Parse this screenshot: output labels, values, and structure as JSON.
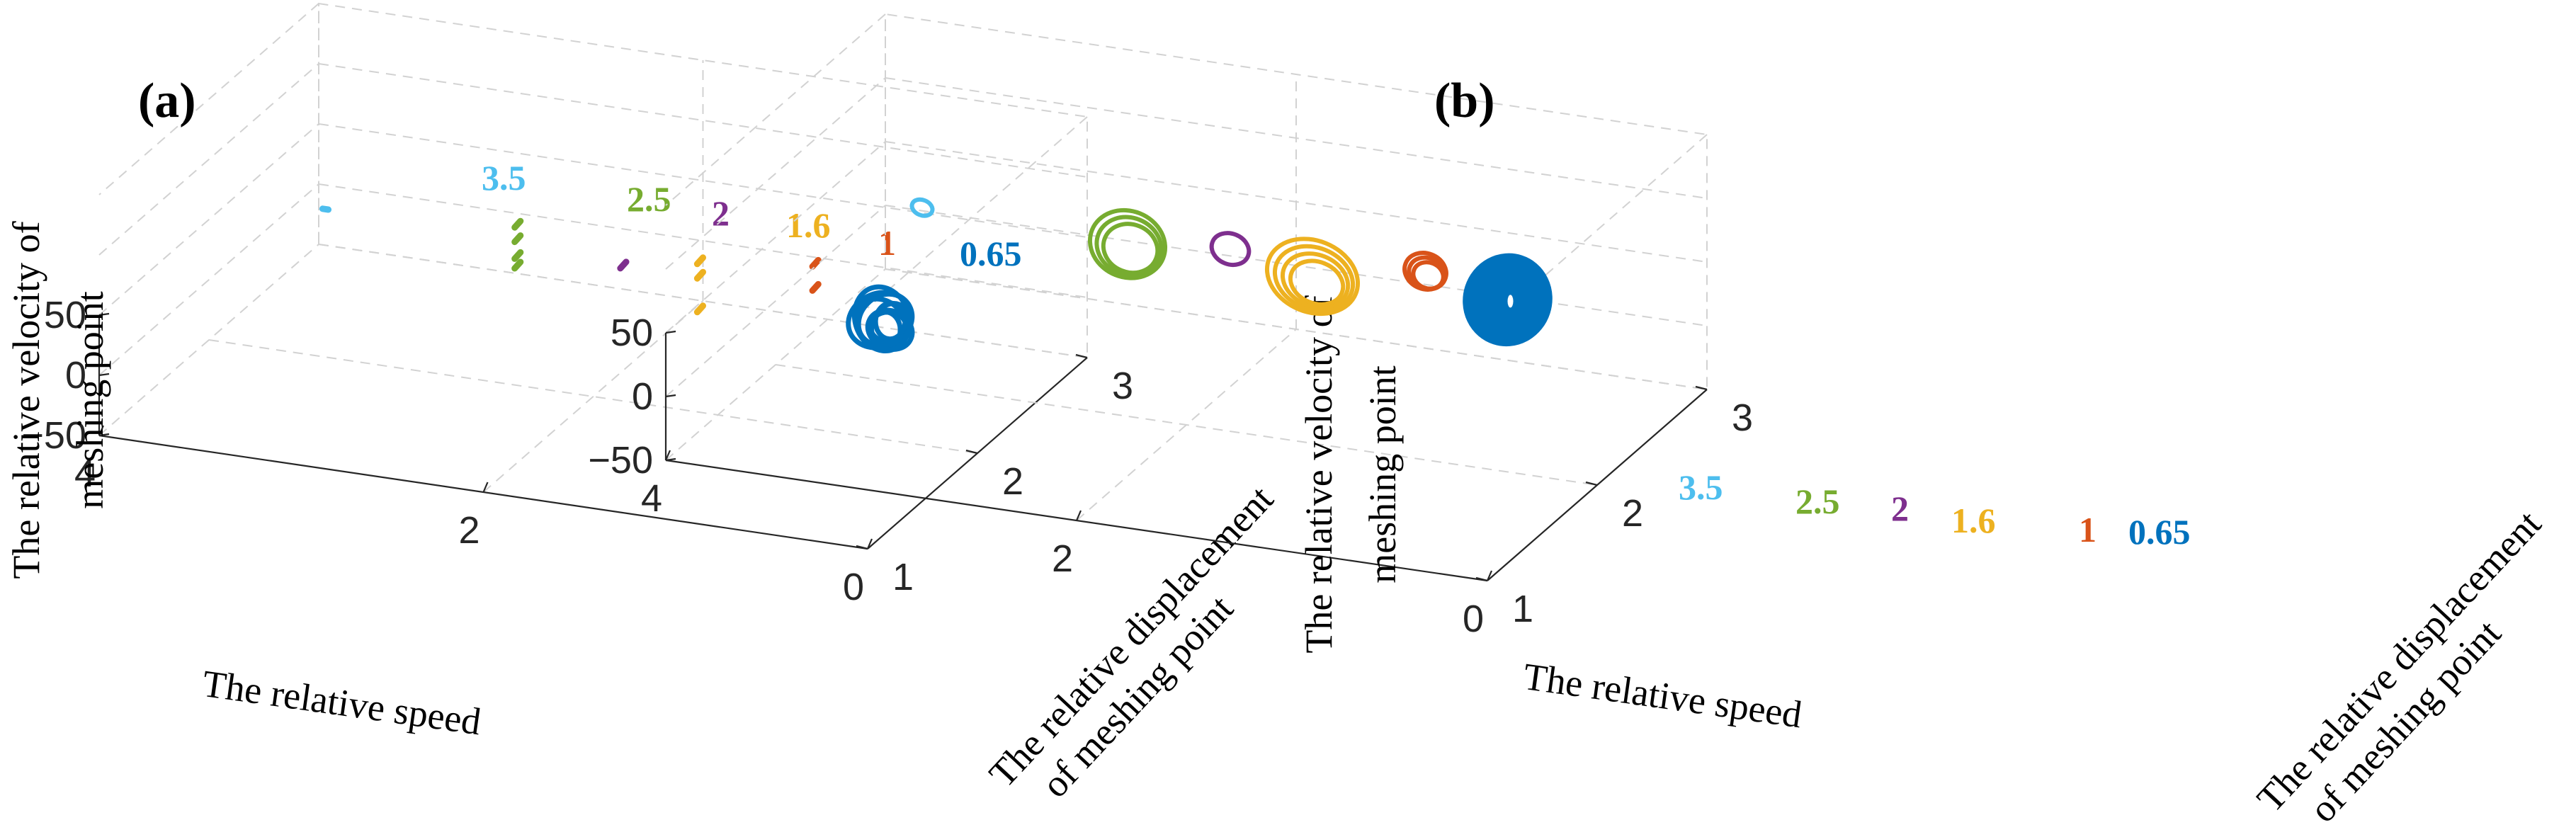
{
  "figure": {
    "colors": {
      "0.65": "#0072BD",
      "1": "#D95319",
      "1.6": "#EDB120",
      "2": "#7E2F8E",
      "2.5": "#77AC30",
      "3.5": "#4DBEEE"
    }
  },
  "chart_data": [
    {
      "type": "scatter",
      "panel_label": "(a)",
      "xlabel": "The relative speed",
      "ylabel": "The relative displacement of meshing point",
      "ylabel_lines": [
        "The relative displacement",
        "of meshing point"
      ],
      "zlabel": "The relative velocity of meshing point",
      "zlabel_lines": [
        "The relative velocity of",
        "meshing point"
      ],
      "xticks": [
        "0",
        "2",
        "4"
      ],
      "yticks": [
        "1",
        "2",
        "3"
      ],
      "zticks": [
        "−50",
        "0",
        "50"
      ],
      "xlim": [
        0,
        4
      ],
      "ylim": [
        1,
        3
      ],
      "zlim": [
        -50,
        50
      ],
      "grid": true,
      "series": [
        {
          "name": "3.5",
          "label": "3.5",
          "color": "#4DBEEE",
          "style": "dots",
          "x": 3.55,
          "y": 2.3,
          "z": [
            45
          ],
          "dz": [
            0,
            0
          ]
        },
        {
          "name": "2.5",
          "label": "2.5",
          "color": "#77AC30",
          "style": "dots",
          "x": 2.55,
          "y": 2.3,
          "z": [
            56,
            44,
            30,
            22
          ],
          "dz": [
            3,
            -3
          ]
        },
        {
          "name": "2",
          "label": "2",
          "color": "#7E2F8E",
          "style": "dots",
          "x": 2.0,
          "y": 2.3,
          "z": [
            35
          ],
          "dz": [
            3,
            -3
          ]
        },
        {
          "name": "1.6",
          "label": "1.6",
          "color": "#EDB120",
          "style": "dots",
          "x": 1.6,
          "y": 2.3,
          "z": [
            48,
            36,
            8
          ],
          "dz": [
            3,
            -3
          ]
        },
        {
          "name": "1",
          "label": "1",
          "color": "#D95319",
          "style": "dots",
          "x": 1.0,
          "y": 2.3,
          "z": [
            60,
            40
          ],
          "dz": [
            3,
            -3
          ]
        },
        {
          "name": "0.65",
          "label": "0.65",
          "color": "#0072BD",
          "style": "attractor",
          "x": 0.65,
          "y": 2.3,
          "z": [
            18
          ],
          "rz": 10,
          "rx": 0.1
        }
      ]
    },
    {
      "type": "scatter",
      "panel_label": "(b)",
      "xlabel": "The relative speed",
      "ylabel": "The relative displacement of meshing point",
      "ylabel_lines": [
        "The relative displacement",
        "of meshing point"
      ],
      "zlabel": "The relative velocity of meshing point",
      "zlabel_lines": [
        "The relative velocity of",
        "meshing point"
      ],
      "xticks": [
        "0",
        "2",
        "4"
      ],
      "yticks": [
        "1",
        "2",
        "3"
      ],
      "zticks": [
        "−50",
        "0",
        "50"
      ],
      "xlim": [
        0,
        4
      ],
      "ylim": [
        1,
        3
      ],
      "zlim": [
        -50,
        50
      ],
      "grid": true,
      "series": [
        {
          "name": "3.5",
          "label": "3.5",
          "color": "#4DBEEE",
          "style": "orbit",
          "x": 3.5,
          "y": 2.4,
          "z": 55,
          "rz": 6,
          "rx": 0.05,
          "rings": 1
        },
        {
          "name": "2.5",
          "label": "2.5",
          "color": "#77AC30",
          "style": "orbit",
          "x": 2.5,
          "y": 2.4,
          "z": 50,
          "rz": 26,
          "rx": 0.18,
          "rings": 3
        },
        {
          "name": "2",
          "label": "2",
          "color": "#7E2F8E",
          "style": "orbit",
          "x": 2.0,
          "y": 2.4,
          "z": 58,
          "rz": 12,
          "rx": 0.09,
          "rings": 1
        },
        {
          "name": "1.6",
          "label": "1.6",
          "color": "#EDB120",
          "style": "orbit",
          "x": 1.6,
          "y": 2.4,
          "z": 46,
          "rz": 28,
          "rx": 0.22,
          "rings": 4
        },
        {
          "name": "1",
          "label": "1",
          "color": "#D95319",
          "style": "orbit",
          "x": 1.05,
          "y": 2.4,
          "z": 63,
          "rz": 14,
          "rx": 0.1,
          "rings": 3
        },
        {
          "name": "0.65",
          "label": "0.65",
          "color": "#0072BD",
          "style": "filled",
          "x": 0.65,
          "y": 2.4,
          "z": 50,
          "rz": 35,
          "rx": 0.2
        }
      ]
    }
  ]
}
